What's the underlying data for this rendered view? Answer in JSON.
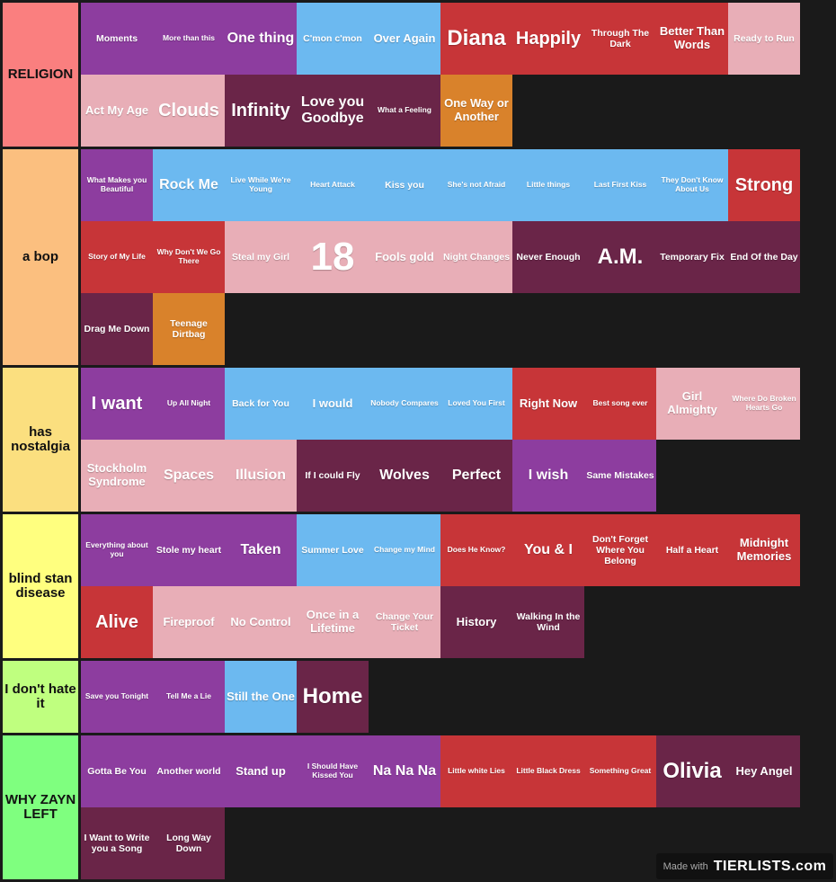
{
  "colors": {
    "purple": "#8d3d9f",
    "blue": "#6cb9f0",
    "red": "#c73538",
    "pink": "#e8aeb7",
    "plum": "#6a2548",
    "orange": "#d9822b"
  },
  "tiers": [
    {
      "label": "RELIGION",
      "color": "#fa7f7f",
      "items": [
        {
          "name": "Moments",
          "color": "purple"
        },
        {
          "name": "More than this",
          "color": "purple"
        },
        {
          "name": "One thing",
          "color": "purple"
        },
        {
          "name": "C'mon c'mon",
          "color": "blue"
        },
        {
          "name": "Over Again",
          "color": "blue"
        },
        {
          "name": "Diana",
          "color": "red"
        },
        {
          "name": "Happily",
          "color": "red"
        },
        {
          "name": "Through The Dark",
          "color": "red"
        },
        {
          "name": "Better Than Words",
          "color": "red"
        },
        {
          "name": "Ready to Run",
          "color": "pink"
        },
        {
          "name": "Act My Age",
          "color": "pink"
        },
        {
          "name": "Clouds",
          "color": "pink"
        },
        {
          "name": "Infinity",
          "color": "plum"
        },
        {
          "name": "Love you Goodbye",
          "color": "plum"
        },
        {
          "name": "What a Feeling",
          "color": "plum"
        },
        {
          "name": "One Way or Another",
          "color": "orange"
        }
      ]
    },
    {
      "label": "a bop",
      "color": "#fbbf7f",
      "items": [
        {
          "name": "What Makes you Beautiful",
          "color": "purple"
        },
        {
          "name": "Rock Me",
          "color": "blue"
        },
        {
          "name": "Live While We're Young",
          "color": "blue"
        },
        {
          "name": "Heart Attack",
          "color": "blue"
        },
        {
          "name": "Kiss you",
          "color": "blue"
        },
        {
          "name": "She's not Afraid",
          "color": "blue"
        },
        {
          "name": "Little things",
          "color": "blue"
        },
        {
          "name": "Last First Kiss",
          "color": "blue"
        },
        {
          "name": "They Don't Know About Us",
          "color": "blue"
        },
        {
          "name": "Strong",
          "color": "red"
        },
        {
          "name": "Story of My Life",
          "color": "red"
        },
        {
          "name": "Why Don't We Go There",
          "color": "red"
        },
        {
          "name": "Steal my Girl",
          "color": "pink"
        },
        {
          "name": "18",
          "color": "pink"
        },
        {
          "name": "Fools gold",
          "color": "pink"
        },
        {
          "name": "Night Changes",
          "color": "pink"
        },
        {
          "name": "Never Enough",
          "color": "plum"
        },
        {
          "name": "A.M.",
          "color": "plum"
        },
        {
          "name": "Temporary Fix",
          "color": "plum"
        },
        {
          "name": "End Of the Day",
          "color": "plum"
        },
        {
          "name": "Drag Me Down",
          "color": "plum"
        },
        {
          "name": "Teenage Dirtbag",
          "color": "orange"
        }
      ]
    },
    {
      "label": "has nostalgia",
      "color": "#fbdf7f",
      "items": [
        {
          "name": "I want",
          "color": "purple"
        },
        {
          "name": "Up All Night",
          "color": "purple"
        },
        {
          "name": "Back for You",
          "color": "blue"
        },
        {
          "name": "I would",
          "color": "blue"
        },
        {
          "name": "Nobody Compares",
          "color": "blue"
        },
        {
          "name": "Loved You First",
          "color": "blue"
        },
        {
          "name": "Right Now",
          "color": "red"
        },
        {
          "name": "Best song ever",
          "color": "red"
        },
        {
          "name": "Girl Almighty",
          "color": "pink"
        },
        {
          "name": "Where Do Broken Hearts Go",
          "color": "pink"
        },
        {
          "name": "Stockholm Syndrome",
          "color": "pink"
        },
        {
          "name": "Spaces",
          "color": "pink"
        },
        {
          "name": "Illusion",
          "color": "pink"
        },
        {
          "name": "If I could Fly",
          "color": "plum"
        },
        {
          "name": "Wolves",
          "color": "plum"
        },
        {
          "name": "Perfect",
          "color": "plum"
        },
        {
          "name": "I wish",
          "color": "purple"
        },
        {
          "name": "Same Mistakes",
          "color": "purple"
        }
      ]
    },
    {
      "label": "blind stan disease",
      "color": "#ffff7f",
      "items": [
        {
          "name": "Everything about you",
          "color": "purple"
        },
        {
          "name": "Stole my heart",
          "color": "purple"
        },
        {
          "name": "Taken",
          "color": "purple"
        },
        {
          "name": "Summer Love",
          "color": "blue"
        },
        {
          "name": "Change my Mind",
          "color": "blue"
        },
        {
          "name": "Does He Know?",
          "color": "red"
        },
        {
          "name": "You & I",
          "color": "red"
        },
        {
          "name": "Don't Forget Where You Belong",
          "color": "red"
        },
        {
          "name": "Half a Heart",
          "color": "red"
        },
        {
          "name": "Midnight Memories",
          "color": "red"
        },
        {
          "name": "Alive",
          "color": "red"
        },
        {
          "name": "Fireproof",
          "color": "pink"
        },
        {
          "name": "No Control",
          "color": "pink"
        },
        {
          "name": "Once in a Lifetime",
          "color": "pink"
        },
        {
          "name": "Change Your Ticket",
          "color": "pink"
        },
        {
          "name": "History",
          "color": "plum"
        },
        {
          "name": "Walking In the Wind",
          "color": "plum"
        }
      ]
    },
    {
      "label": "I don't hate it",
      "color": "#bfff7f",
      "items": [
        {
          "name": "Save you Tonight",
          "color": "purple"
        },
        {
          "name": "Tell Me a Lie",
          "color": "purple"
        },
        {
          "name": "Still the One",
          "color": "blue"
        },
        {
          "name": "Home",
          "color": "plum"
        }
      ]
    },
    {
      "label": "WHY ZAYN LEFT",
      "color": "#7fff7f",
      "items": [
        {
          "name": "Gotta Be You",
          "color": "purple"
        },
        {
          "name": "Another world",
          "color": "purple"
        },
        {
          "name": "Stand up",
          "color": "purple"
        },
        {
          "name": "I Should Have Kissed You",
          "color": "purple"
        },
        {
          "name": "Na Na Na",
          "color": "purple"
        },
        {
          "name": "Little white Lies",
          "color": "red"
        },
        {
          "name": "Little Black Dress",
          "color": "red"
        },
        {
          "name": "Something Great",
          "color": "red"
        },
        {
          "name": "Olivia",
          "color": "plum"
        },
        {
          "name": "Hey Angel",
          "color": "plum"
        },
        {
          "name": "I Want to Write you a Song",
          "color": "plum"
        },
        {
          "name": "Long Way Down",
          "color": "plum"
        }
      ]
    }
  ],
  "watermark": {
    "made_with": "Made with",
    "brand": "TIERLISTS.com"
  }
}
